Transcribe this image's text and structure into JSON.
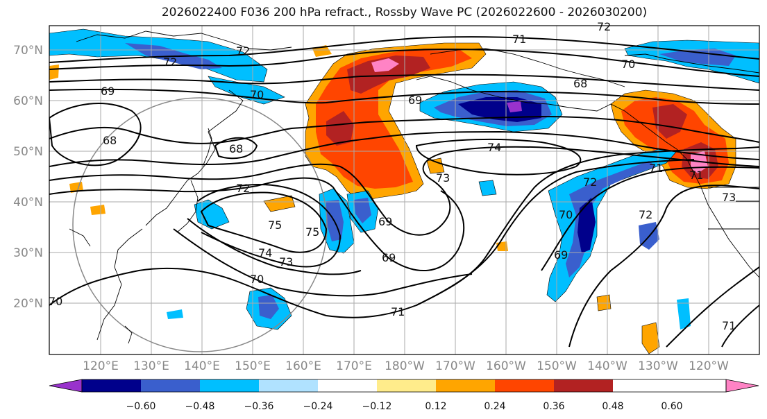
{
  "title": "2026022400 F036 200 hPa refract., Rossby Wave PC (2026022600 - 2026030200)",
  "lat_labels": [
    "70°N",
    "60°N",
    "50°N",
    "40°N",
    "30°N",
    "20°N"
  ],
  "lon_labels": [
    "120°E",
    "130°E",
    "140°E",
    "150°E",
    "160°E",
    "170°E",
    "180°W",
    "170°W",
    "160°W",
    "150°W",
    "140°W",
    "130°W",
    "120°W"
  ],
  "colorbar": {
    "colors": [
      "#9932cc",
      "#00008b",
      "#3a5fcd",
      "#00bfff",
      "#b0e2ff",
      "#ffffff",
      "#ffec8b",
      "#ffa500",
      "#ff4500",
      "#b22222",
      "#ff83c5"
    ],
    "tick_labels": [
      "−0.60",
      "−0.48",
      "−0.36",
      "−0.24",
      "−0.12",
      "0.12",
      "0.24",
      "0.36",
      "0.48",
      "0.60"
    ]
  },
  "contour_labels": [
    "72",
    "72",
    "71",
    "72",
    "70",
    "68",
    "69",
    "70",
    "69",
    "68",
    "68",
    "74",
    "72",
    "73",
    "75",
    "75",
    "74",
    "73",
    "70",
    "69",
    "69",
    "71",
    "70",
    "69",
    "72",
    "71",
    "73",
    "72",
    "71",
    "70",
    "71"
  ]
}
